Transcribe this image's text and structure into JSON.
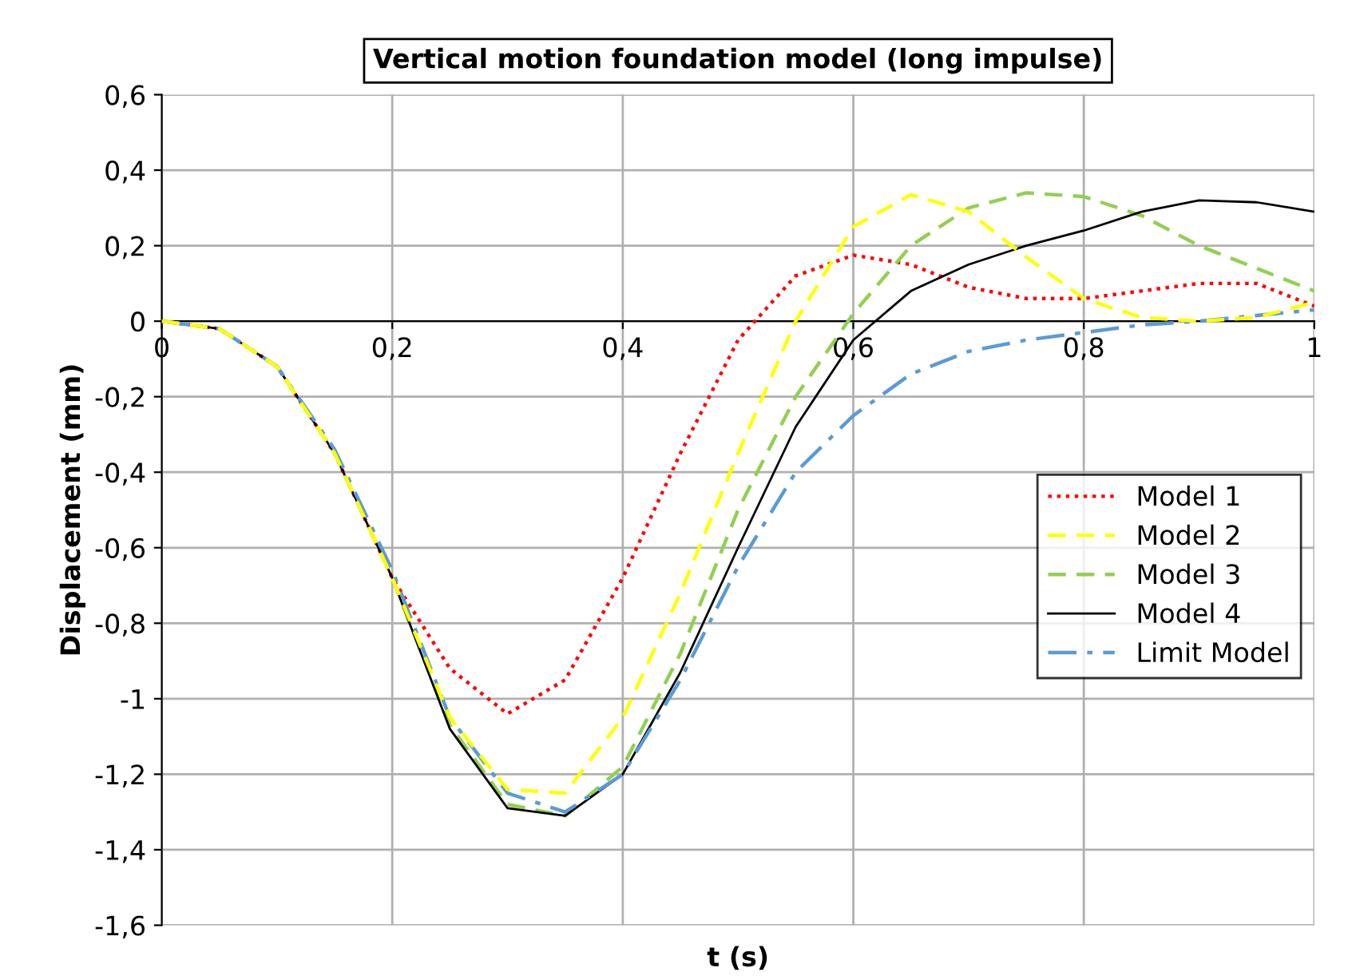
{
  "chart_data": {
    "type": "line",
    "title": "Vertical motion foundation model (long impulse)",
    "xlabel": "t (s)",
    "ylabel": "Displacement (mm)",
    "x": [
      0,
      0.05,
      0.1,
      0.15,
      0.2,
      0.25,
      0.3,
      0.35,
      0.4,
      0.45,
      0.5,
      0.55,
      0.6,
      0.65,
      0.7,
      0.75,
      0.8,
      0.85,
      0.9,
      0.95,
      1.0
    ],
    "series": [
      {
        "name": "Model 1",
        "color": "#ff0000",
        "line_style": "dotted",
        "values": [
          0,
          -0.02,
          -0.12,
          -0.35,
          -0.68,
          -0.92,
          -1.04,
          -0.95,
          -0.68,
          -0.35,
          -0.05,
          0.12,
          0.175,
          0.15,
          0.09,
          0.06,
          0.06,
          0.08,
          0.1,
          0.1,
          0.04
        ]
      },
      {
        "name": "Model 2",
        "color": "#ffff00",
        "line_style": "dashed",
        "values": [
          0,
          -0.02,
          -0.12,
          -0.35,
          -0.68,
          -1.05,
          -1.24,
          -1.25,
          -1.05,
          -0.72,
          -0.35,
          0.0,
          0.25,
          0.335,
          0.29,
          0.17,
          0.06,
          0.01,
          0.0,
          0.01,
          0.05
        ]
      },
      {
        "name": "Model 3",
        "color": "#92d050",
        "line_style": "dashed",
        "values": [
          0,
          -0.02,
          -0.12,
          -0.35,
          -0.68,
          -1.07,
          -1.28,
          -1.31,
          -1.18,
          -0.88,
          -0.5,
          -0.2,
          0.02,
          0.2,
          0.3,
          0.34,
          0.33,
          0.28,
          0.2,
          0.14,
          0.08
        ]
      },
      {
        "name": "Model 4",
        "color": "#000000",
        "line_style": "solid",
        "values": [
          0,
          -0.02,
          -0.12,
          -0.35,
          -0.68,
          -1.08,
          -1.29,
          -1.31,
          -1.2,
          -0.93,
          -0.6,
          -0.28,
          -0.05,
          0.08,
          0.15,
          0.2,
          0.24,
          0.29,
          0.32,
          0.315,
          0.29
        ]
      },
      {
        "name": "Limit Model",
        "color": "#5b9bd5",
        "line_style": "dashdot",
        "values": [
          0,
          -0.02,
          -0.12,
          -0.34,
          -0.66,
          -1.05,
          -1.25,
          -1.3,
          -1.2,
          -0.95,
          -0.65,
          -0.4,
          -0.25,
          -0.14,
          -0.08,
          -0.05,
          -0.03,
          -0.01,
          0.0,
          0.015,
          0.03
        ]
      }
    ],
    "xlim": [
      0,
      1
    ],
    "ylim": [
      -1.6,
      0.6
    ],
    "xticks": [
      0,
      {
        "value": 0.2,
        "label": "0,2"
      },
      {
        "value": 0.4,
        "label": "0,4"
      },
      {
        "value": 0.6,
        "label": "0,6"
      },
      {
        "value": 0.8,
        "label": "0,8"
      },
      1
    ],
    "yticks": [
      {
        "value": -1.6,
        "label": "-1,6"
      },
      {
        "value": -1.4,
        "label": "-1,4"
      },
      {
        "value": -1.2,
        "label": "-1,2"
      },
      -1,
      {
        "value": -0.8,
        "label": "-0,8"
      },
      {
        "value": -0.6,
        "label": "-0,6"
      },
      {
        "value": -0.4,
        "label": "-0,4"
      },
      {
        "value": -0.2,
        "label": "-0,2"
      },
      0,
      {
        "value": 0.2,
        "label": "0,2"
      },
      {
        "value": 0.4,
        "label": "0,4"
      },
      {
        "value": 0.6,
        "label": "0,6"
      }
    ],
    "grid": true,
    "legend": "right",
    "marker": "none"
  }
}
